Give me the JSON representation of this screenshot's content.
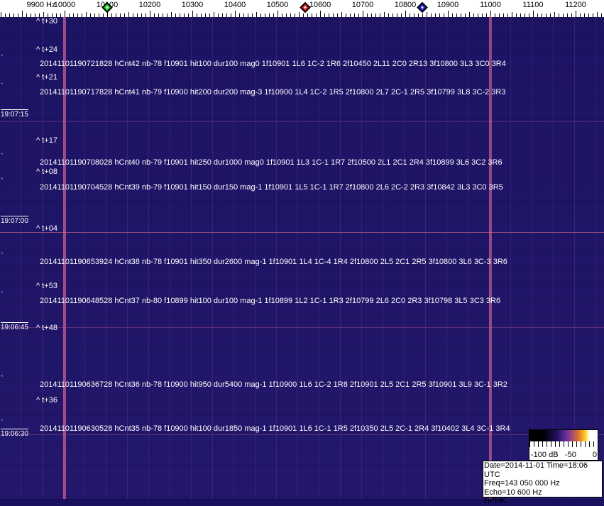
{
  "axis": {
    "unit_label": "9900 Hz",
    "ticks": [
      "10000",
      "10100",
      "10200",
      "10300",
      "10400",
      "10500",
      "10600",
      "10700",
      "10800",
      "10900",
      "11000",
      "11100",
      "11200"
    ],
    "markers": [
      {
        "name": "green",
        "freq_hz": 10100,
        "color": "#22cc22"
      },
      {
        "name": "red",
        "freq_hz": 10565,
        "color": "#dd2222"
      },
      {
        "name": "blue",
        "freq_hz": 10840,
        "color": "#2222cc"
      }
    ]
  },
  "times": [
    "19:07:15",
    "19:07:00",
    "19:06:45",
    "19:06:30"
  ],
  "annotations": [
    "^ t+24",
    "20141101190721828 hCnt42 nb-78 f10901 hit100 dur100 mag0 1f10901 1L6 1C-2 1R6 2f10450 2L11 2C0 2R13 3f10800 3L3 3C0 3R4",
    "^ t+21",
    "20141101190717828 hCnt41 nb-79 f10900 hit200 dur200 mag-3 1f10900 1L4 1C-2 1R5 2f10800 2L7 2C-1 2R5 3f10799 3L8 3C-2 3R3",
    "^ t+17",
    "20141101190708028 hCnt40 nb-79 f10901 hit250 dur1000 mag0 1f10901 1L3 1C-1 1R7 2f10500 2L1 2C1 2R4 3f10899 3L6 3C2 3R6",
    "^ t+08",
    "20141101190704528 hCnt39 nb-79 f10901 hit150 dur150 mag-1 1f10901 1L5 1C-1 1R7 2f10800 2L6 2C-2 2R3 3f10842 3L3 3C0 3R5",
    "^ t+04",
    "20141101190653924 hCnt38 nb-78 f10901 hit350 dur2600 mag-1 1f10901 1L4 1C-4 1R4 2f10800 2L5 2C1 2R5 3f10800 3L6 3C-3 3R6",
    "^ t+53",
    "20141101190648528 hCnt37 nb-80 f10899 hit100 dur100 mag-1 1f10899 1L2 1C-1 1R3 2f10799 2L6 2C0 2R3 3f10798 3L5 3C3 3R6",
    "^ t+48",
    "20141101190636728 hCnt36 nb-78 f10900 hit950 dur5400 mag-1 1f10900 1L6 1C-2 1R8 2f10901 2L5 2C1 2R5 3f10901 3L9 3C-1 3R2",
    "^ t+36",
    "20141101190630528 hCnt35 nb-78 f10900 hit100 dur1850 mag-1 1f10901 1L6 1C-1 1R5 2f10350 2L5 2C-1 2R4 3f10402 3L4 3C-1 3R4",
    "^ t+30"
  ],
  "colorbar": {
    "labels": [
      "-100 dB",
      "-50",
      "0"
    ]
  },
  "info": {
    "date": "Date=2014-11-01 Time=18:06 UTC",
    "freq": "Freq=143 050 000 Hz",
    "echo": "Echo=10 600 Hz",
    "station": "HPHK"
  }
}
